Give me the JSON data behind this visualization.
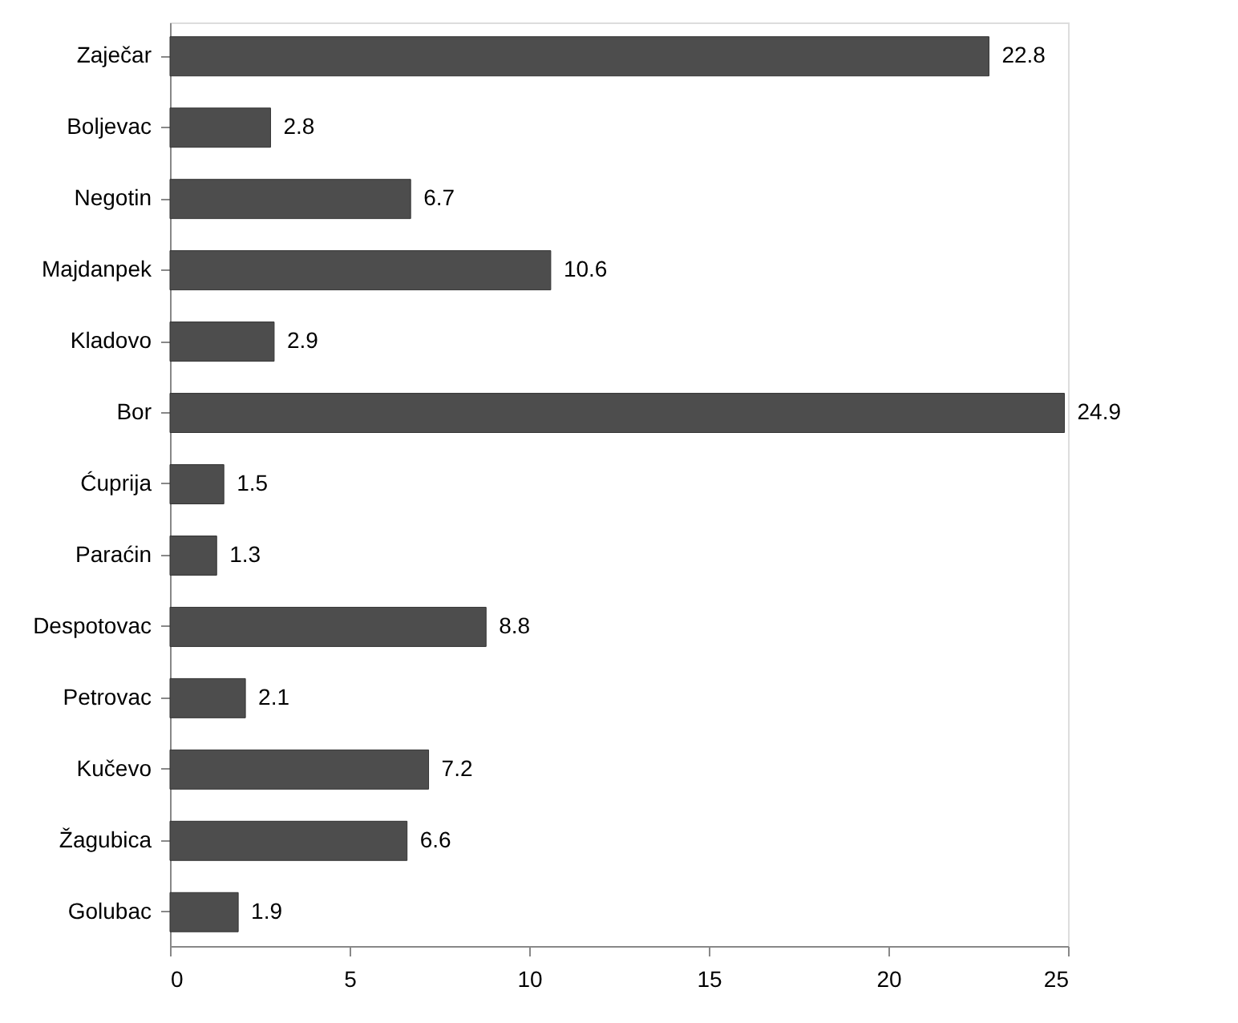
{
  "chart_data": {
    "type": "bar",
    "orientation": "horizontal",
    "categories": [
      "Zaječar",
      "Boljevac",
      "Negotin",
      "Majdanpek",
      "Kladovo",
      "Bor",
      "Ćuprija",
      "Paraćin",
      "Despotovac",
      "Petrovac",
      "Kučevo",
      "Žagubica",
      "Golubac"
    ],
    "values": [
      22.8,
      2.8,
      6.7,
      10.6,
      2.9,
      24.9,
      1.5,
      1.3,
      8.8,
      2.1,
      7.2,
      6.6,
      1.9
    ],
    "color": "#4d4d4d",
    "xlim": [
      0,
      25
    ],
    "xticks": [
      0,
      5,
      10,
      15,
      20,
      25
    ],
    "data_labels": true,
    "grid": false
  }
}
